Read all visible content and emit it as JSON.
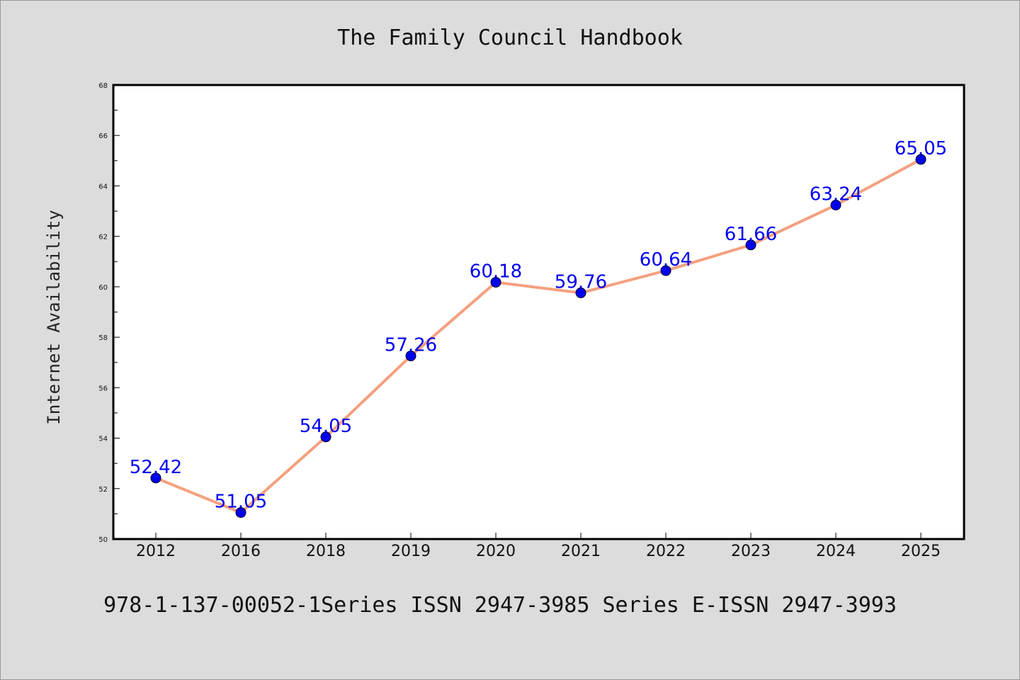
{
  "chart_data": {
    "type": "line",
    "title": "The Family Council Handbook",
    "ylabel": "Internet Availability",
    "xlabel": "",
    "categories": [
      "2012",
      "2016",
      "2018",
      "2019",
      "2020",
      "2021",
      "2022",
      "2023",
      "2024",
      "2025"
    ],
    "series": [
      {
        "values": [
          52.42,
          51.05,
          54.05,
          57.26,
          60.18,
          59.76,
          60.64,
          61.66,
          63.24,
          65.05
        ],
        "labels": [
          "52.42",
          "51.05",
          "54.05",
          "57.26",
          "60.18",
          "59.76",
          "60.64",
          "61.66",
          "63.24",
          "65.05"
        ]
      }
    ],
    "ylim": [
      50,
      68
    ],
    "yticks": [
      "50",
      "52",
      "54",
      "56",
      "58",
      "60",
      "62",
      "64",
      "66",
      "68"
    ],
    "grid": false,
    "legend": false,
    "colors": {
      "line": "#f4a07f",
      "marker": "#0000ee",
      "label": "#0000ee",
      "plot_background": "#ffffff",
      "page_background": "#dcdcdc"
    }
  },
  "footer": "978-1-137-00052-1Series ISSN 2947-3985 Series E-ISSN 2947-3993"
}
